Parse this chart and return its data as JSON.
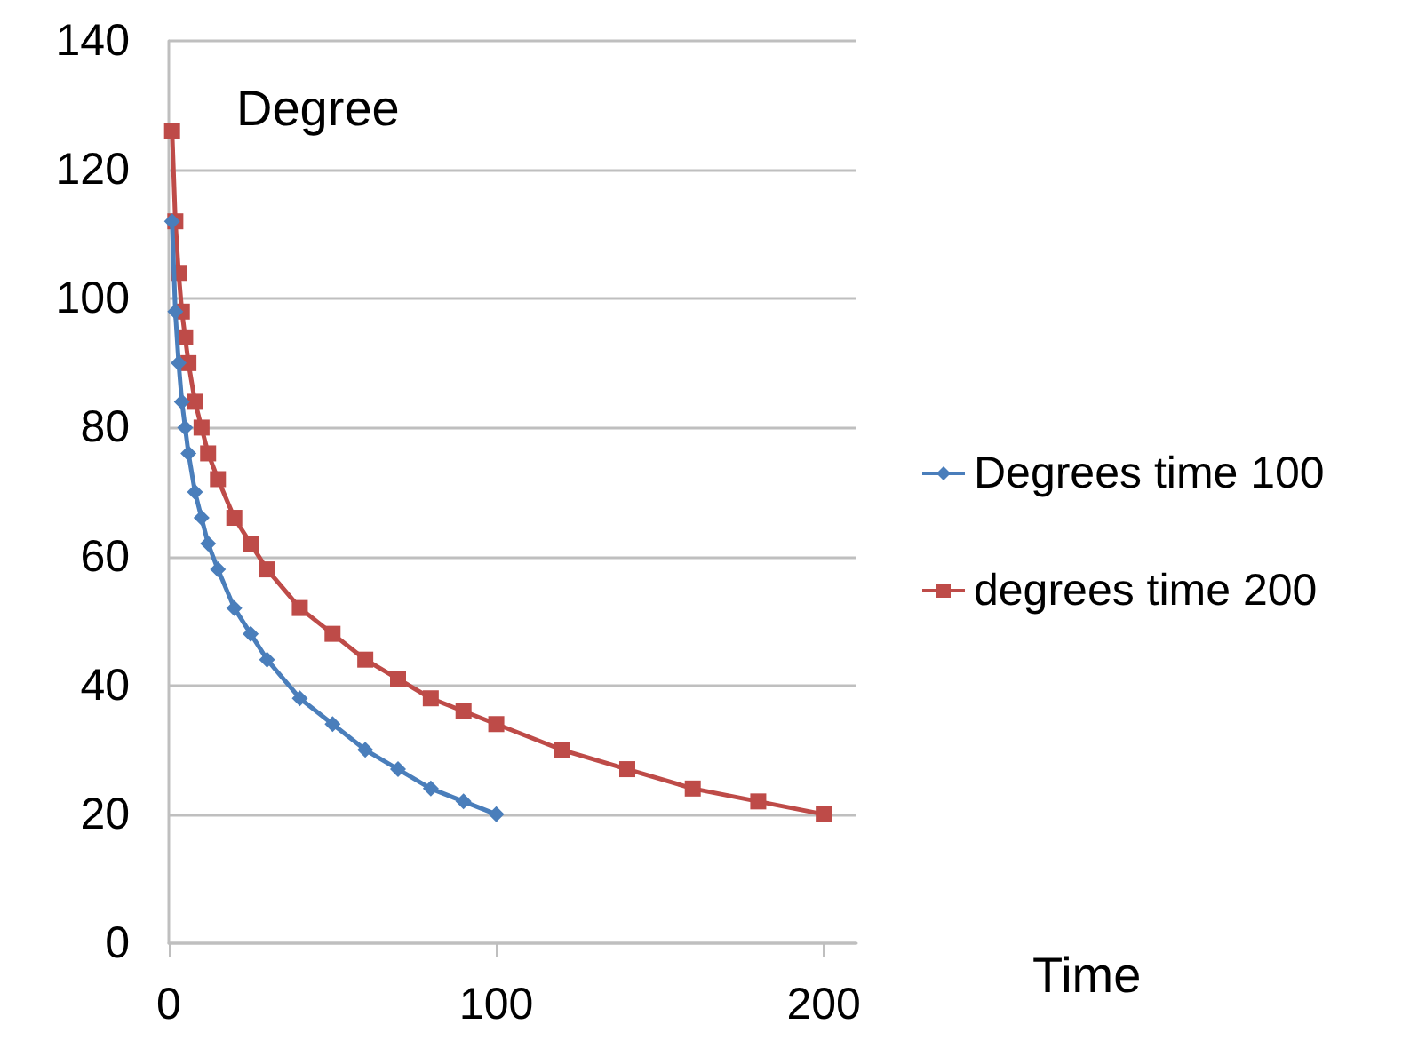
{
  "chart_data": {
    "type": "line",
    "xlabel": "Time",
    "ylabel": "Degree",
    "xlim": [
      0,
      210
    ],
    "xticks": [
      0,
      100,
      200
    ],
    "ylim": [
      0,
      140
    ],
    "yticks": [
      0,
      20,
      40,
      60,
      80,
      100,
      120,
      140
    ],
    "grid": "y",
    "legend": "right",
    "series": [
      {
        "name": "Degrees time 100",
        "color": "#4a7ebb",
        "marker": "diamond",
        "x": [
          1,
          2,
          3,
          4,
          5,
          6,
          8,
          10,
          12,
          15,
          20,
          25,
          30,
          40,
          50,
          60,
          70,
          80,
          90,
          100
        ],
        "values": [
          112,
          98,
          90,
          84,
          80,
          76,
          70,
          66,
          62,
          58,
          52,
          48,
          44,
          38,
          34,
          30,
          27,
          24,
          22,
          20
        ]
      },
      {
        "name": "degrees time 200",
        "color": "#be4b48",
        "marker": "square",
        "x": [
          1,
          2,
          3,
          4,
          5,
          6,
          8,
          10,
          12,
          15,
          20,
          25,
          30,
          40,
          50,
          60,
          70,
          80,
          90,
          100,
          120,
          140,
          160,
          180,
          200
        ],
        "values": [
          126,
          112,
          104,
          98,
          94,
          90,
          84,
          80,
          76,
          72,
          66,
          62,
          58,
          52,
          48,
          44,
          41,
          38,
          36,
          34,
          30,
          27,
          24,
          22,
          20
        ]
      }
    ]
  }
}
